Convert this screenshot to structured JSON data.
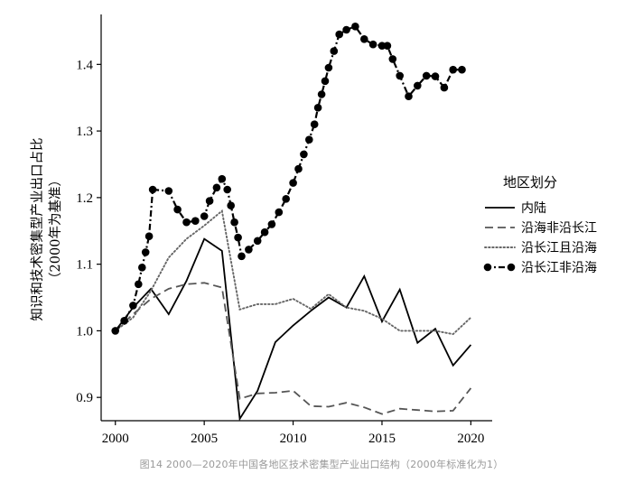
{
  "caption": "图14 2000—2020年中国各地区技术密集型产业出口结构（2000年标准化为1）",
  "chart_data": {
    "type": "line",
    "xlabel": "",
    "ylabel": "知识和技术密集型产业出口占比",
    "ylabel_sub": "（2000年为基准）",
    "xlim": [
      1999.2,
      2021.2
    ],
    "ylim": [
      0.865,
      1.475
    ],
    "xticks": [
      2000,
      2005,
      2010,
      2015,
      2020
    ],
    "yticks": [
      0.9,
      1.0,
      1.1,
      1.2,
      1.3,
      1.4
    ],
    "ytick_labels": [
      "0.9",
      "1.0",
      "1.1",
      "1.2",
      "1.3",
      "1.4"
    ],
    "legend": {
      "title": "地区划分",
      "position": "right"
    },
    "grid": false,
    "series": [
      {
        "name": "内陆",
        "style": "solid",
        "color": "#000000",
        "x": [
          2000,
          2001,
          2002,
          2003,
          2004,
          2005,
          2006,
          2007,
          2008,
          2009,
          2010,
          2011,
          2012,
          2013,
          2014,
          2015,
          2016,
          2017,
          2018,
          2019,
          2020
        ],
        "y": [
          1.0,
          1.035,
          1.063,
          1.025,
          1.075,
          1.138,
          1.12,
          0.868,
          0.91,
          0.983,
          1.008,
          1.03,
          1.05,
          1.035,
          1.082,
          1.014,
          1.062,
          0.982,
          1.003,
          0.948,
          0.979
        ]
      },
      {
        "name": "沿海非沿长江",
        "style": "dashed",
        "color": "#555555",
        "x": [
          2000,
          2001,
          2002,
          2003,
          2004,
          2005,
          2006,
          2007,
          2008,
          2009,
          2010,
          2011,
          2012,
          2013,
          2014,
          2015,
          2016,
          2017,
          2018,
          2019,
          2020
        ],
        "y": [
          1.0,
          1.025,
          1.048,
          1.063,
          1.07,
          1.072,
          1.065,
          0.898,
          0.906,
          0.907,
          0.91,
          0.887,
          0.886,
          0.892,
          0.885,
          0.875,
          0.883,
          0.881,
          0.879,
          0.88,
          0.914
        ]
      },
      {
        "name": "沿长江且沿海",
        "style": "dotted",
        "color": "#666666",
        "x": [
          2000,
          2001,
          2002,
          2003,
          2004,
          2005,
          2006,
          2007,
          2008,
          2009,
          2010,
          2011,
          2012,
          2013,
          2014,
          2015,
          2016,
          2017,
          2018,
          2019,
          2020
        ],
        "y": [
          1.0,
          1.02,
          1.06,
          1.11,
          1.138,
          1.158,
          1.18,
          1.032,
          1.04,
          1.04,
          1.048,
          1.033,
          1.055,
          1.035,
          1.03,
          1.018,
          1.0,
          1.0,
          1.0,
          0.995,
          1.02
        ]
      },
      {
        "name": "沿长江非沿海",
        "style": "dash-dot-markers",
        "color": "#000000",
        "x": [
          2000,
          2000.5,
          2001,
          2001.3,
          2001.5,
          2001.7,
          2001.9,
          2002.1,
          2003,
          2003.5,
          2004,
          2004.5,
          2005,
          2005.3,
          2005.7,
          2006,
          2006.3,
          2006.5,
          2006.7,
          2006.9,
          2007.1,
          2007.5,
          2008,
          2008.4,
          2008.8,
          2009.2,
          2009.6,
          2010,
          2010.3,
          2010.6,
          2010.9,
          2011.2,
          2011.4,
          2011.6,
          2011.8,
          2012,
          2012.3,
          2012.6,
          2013,
          2013.5,
          2014,
          2014.5,
          2015,
          2015.3,
          2015.6,
          2016,
          2016.5,
          2017,
          2017.5,
          2018,
          2018.5,
          2019,
          2019.5
        ],
        "y": [
          1.0,
          1.015,
          1.038,
          1.07,
          1.095,
          1.118,
          1.142,
          1.212,
          1.21,
          1.182,
          1.163,
          1.165,
          1.172,
          1.195,
          1.215,
          1.228,
          1.212,
          1.188,
          1.163,
          1.14,
          1.112,
          1.122,
          1.135,
          1.148,
          1.16,
          1.178,
          1.198,
          1.222,
          1.243,
          1.265,
          1.287,
          1.31,
          1.335,
          1.355,
          1.375,
          1.395,
          1.42,
          1.445,
          1.452,
          1.457,
          1.438,
          1.43,
          1.428,
          1.428,
          1.408,
          1.383,
          1.352,
          1.368,
          1.383,
          1.382,
          1.365,
          1.392,
          1.392
        ]
      }
    ]
  }
}
